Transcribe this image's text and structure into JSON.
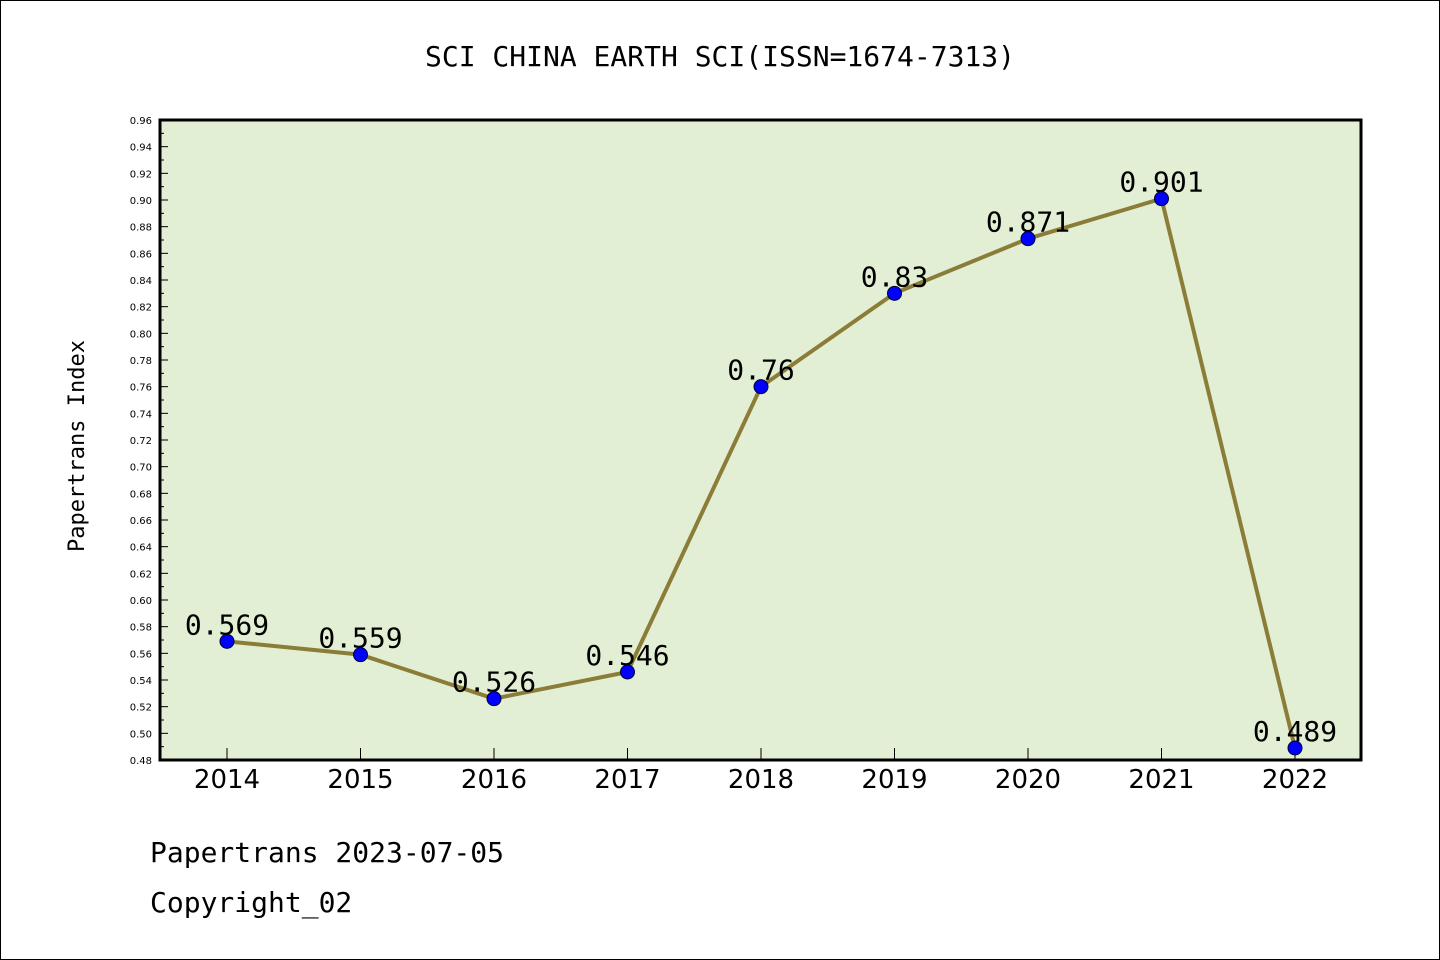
{
  "chart_data": {
    "type": "line",
    "title": "SCI CHINA EARTH SCI(ISSN=1674-7313)",
    "xlabel": "",
    "ylabel": "Papertrans Index",
    "categories": [
      "2014",
      "2015",
      "2016",
      "2017",
      "2018",
      "2019",
      "2020",
      "2021",
      "2022"
    ],
    "series": [
      {
        "values": [
          0.569,
          0.559,
          0.526,
          0.546,
          0.76,
          0.83,
          0.871,
          0.901,
          0.489
        ],
        "labels": [
          "0.569",
          "0.559",
          "0.526",
          "0.546",
          "0.76",
          "0.83",
          "0.871",
          "0.901",
          "0.489"
        ]
      }
    ],
    "ylim": [
      0.48,
      0.96
    ],
    "yticks": [
      "0.48",
      "0.50",
      "0.52",
      "0.54",
      "0.56",
      "0.58",
      "0.60",
      "0.62",
      "0.64",
      "0.66",
      "0.68",
      "0.70",
      "0.72",
      "0.74",
      "0.76",
      "0.78",
      "0.80",
      "0.82",
      "0.84",
      "0.86",
      "0.88",
      "0.90",
      "0.92",
      "0.94",
      "0.96"
    ],
    "grid": false,
    "legend": "none"
  },
  "colors": {
    "plot_background": "#e2efd4",
    "line": "#8b7d38",
    "marker": "#0000ff"
  },
  "footer": {
    "line1": "Papertrans 2023-07-05",
    "line2": "Copyright_02"
  }
}
